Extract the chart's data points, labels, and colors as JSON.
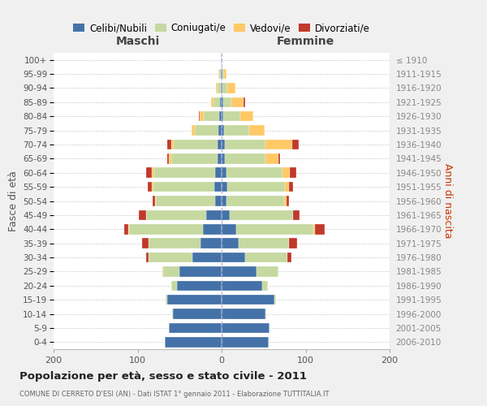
{
  "age_groups": [
    "100+",
    "95-99",
    "90-94",
    "85-89",
    "80-84",
    "75-79",
    "70-74",
    "65-69",
    "60-64",
    "55-59",
    "50-54",
    "45-49",
    "40-44",
    "35-39",
    "30-34",
    "25-29",
    "20-24",
    "15-19",
    "10-14",
    "5-9",
    "0-4"
  ],
  "birth_years": [
    "≤ 1910",
    "1911-1915",
    "1916-1920",
    "1921-1925",
    "1926-1930",
    "1931-1935",
    "1936-1940",
    "1941-1945",
    "1946-1950",
    "1951-1955",
    "1956-1960",
    "1961-1965",
    "1966-1970",
    "1971-1975",
    "1976-1980",
    "1981-1985",
    "1986-1990",
    "1991-1995",
    "1996-2000",
    "2001-2005",
    "2006-2010"
  ],
  "maschi_celibi": [
    1,
    1,
    1,
    2,
    3,
    4,
    5,
    5,
    8,
    9,
    8,
    18,
    22,
    25,
    35,
    50,
    53,
    65,
    58,
    63,
    68
  ],
  "maschi_coniugati": [
    0,
    2,
    4,
    8,
    18,
    28,
    52,
    55,
    72,
    72,
    70,
    72,
    88,
    62,
    52,
    20,
    7,
    2,
    1,
    0,
    0
  ],
  "maschi_vedovi": [
    0,
    1,
    2,
    3,
    5,
    4,
    3,
    3,
    3,
    2,
    1,
    0,
    1,
    0,
    0,
    1,
    0,
    0,
    0,
    0,
    0
  ],
  "maschi_divorziati": [
    0,
    0,
    0,
    0,
    1,
    0,
    5,
    2,
    7,
    5,
    3,
    9,
    5,
    8,
    3,
    0,
    0,
    0,
    0,
    0,
    0
  ],
  "femmine_nubili": [
    0,
    1,
    1,
    2,
    2,
    3,
    4,
    4,
    6,
    7,
    6,
    10,
    17,
    20,
    28,
    42,
    48,
    63,
    52,
    57,
    56
  ],
  "femmine_coniugate": [
    0,
    2,
    6,
    10,
    20,
    30,
    48,
    48,
    66,
    68,
    68,
    75,
    92,
    60,
    50,
    26,
    7,
    2,
    1,
    0,
    0
  ],
  "femmine_vedove": [
    0,
    3,
    9,
    14,
    16,
    18,
    32,
    16,
    9,
    5,
    3,
    0,
    2,
    0,
    0,
    0,
    0,
    0,
    0,
    0,
    0
  ],
  "femmine_divorziate": [
    0,
    0,
    0,
    2,
    0,
    0,
    8,
    2,
    8,
    5,
    3,
    8,
    12,
    10,
    5,
    0,
    0,
    0,
    0,
    0,
    0
  ],
  "colors": {
    "celibi": "#4472a8",
    "coniugati": "#c5d9a0",
    "vedovi": "#ffc966",
    "divorziati": "#c0392b"
  },
  "title": "Popolazione per età, sesso e stato civile - 2011",
  "subtitle": "COMUNE DI CERRETO D'ESI (AN) - Dati ISTAT 1° gennaio 2011 - Elaborazione TUTTITALIA.IT",
  "label_maschi": "Maschi",
  "label_femmine": "Femmine",
  "ylabel_left": "Fasce di età",
  "ylabel_right": "Anni di nascita",
  "legend_labels": [
    "Celibi/Nubili",
    "Coniugati/e",
    "Vedovi/e",
    "Divorziati/e"
  ],
  "xlim": 200,
  "bg_color": "#f0f0f0",
  "plot_bg": "#ffffff"
}
